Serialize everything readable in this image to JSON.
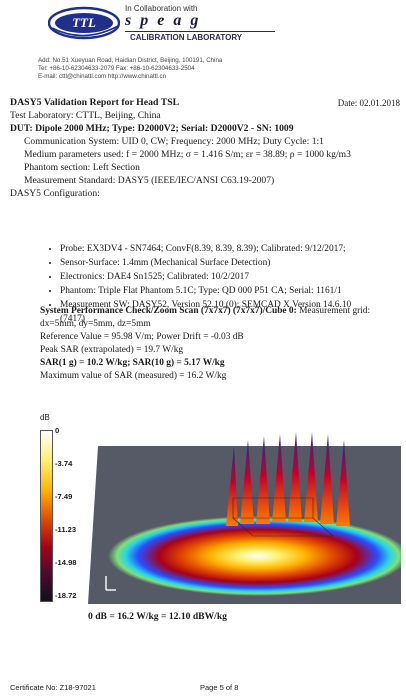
{
  "header": {
    "logo_text": "TTL",
    "collaboration": "In Collaboration with",
    "speag": "speag",
    "calibration_lab": "CALIBRATION LABORATORY",
    "address_1": "Add: No.51 Xueyuan Road, Haidian District, Beijing, 100191, China",
    "address_2": "Tel: +86-10-62304633-2079        Fax: +86-10-62304633-2504",
    "address_3": "E-mail: cttl@chinattl.com           http://www.chinattl.cn"
  },
  "report": {
    "title": "DASY5 Validation Report for Head TSL",
    "date": "Date: 02.01.2018",
    "laboratory": "Test Laboratory: CTTL, Beijing, China",
    "dut": "DUT: Dipole 2000 MHz; Type: D2000V2; Serial: D2000V2 - SN: 1009",
    "comm_system": "Communication System: UID 0, CW; Frequency: 2000 MHz; Duty Cycle: 1:1",
    "medium": "Medium parameters used: f = 2000 MHz; σ = 1.416 S/m; εr = 38.89; ρ = 1000 kg/m3",
    "phantom_section": "Phantom section: Left Section",
    "measurement_standard": "Measurement Standard: DASY5 (IEEE/IEC/ANSI C63.19-2007)",
    "configuration_heading": "DASY5 Configuration:",
    "config_items": [
      "Probe: EX3DV4 - SN7464; ConvF(8.39, 8.39, 8.39); Calibrated: 9/12/2017;",
      "Sensor-Surface: 1.4mm (Mechanical Surface Detection)",
      "Electronics: DAE4 Sn1525; Calibrated: 10/2/2017",
      "Phantom: Triple Flat Phantom 5.1C; Type: QD 000 P51 CA; Serial: 1161/1",
      "Measurement SW: DASY52, Version 52.10 (0); SEMCAD X Version 14.6.10"
    ],
    "config_item_5_cont": "(7417)"
  },
  "performance": {
    "heading": "System Performance Check/Zoom Scan (7x7x7) (7x7x7)/Cube 0:",
    "heading_rest": " Measurement grid:",
    "grid": "dx=5mm, dy=5mm, dz=5mm",
    "reference": "Reference Value = 95.98 V/m; Power Drift = -0.03 dB",
    "peak_sar": "Peak SAR (extrapolated) = 19.7 W/kg",
    "sar_values": "SAR(1 g) = 10.2 W/kg; SAR(10 g) = 5.17 W/kg",
    "max_sar": "Maximum value of SAR (measured) = 16.2 W/kg"
  },
  "figure": {
    "scale_unit": "dB",
    "scale_ticks": [
      "0",
      "-3.74",
      "-7.49",
      "-11.23",
      "-14.98",
      "-18.72"
    ],
    "axis_marker": "L",
    "formula": "0 dB = 16.2 W/kg = 12.10 dBW/kg",
    "colors": {
      "white": "#ffffff",
      "yellow": "#ffef6a",
      "orange": "#ffb300",
      "red": "#e24a00",
      "dark_red": "#a8001a",
      "purple": "#4d0a2e",
      "blue_ring": "#2a4cff",
      "cyan_ring": "#27d3e8",
      "green_ring": "#7ee07a",
      "background": "#555a66"
    }
  },
  "footer": {
    "certificate": "Certificate No: Z18-97021",
    "page": "Page 5 of 8"
  }
}
